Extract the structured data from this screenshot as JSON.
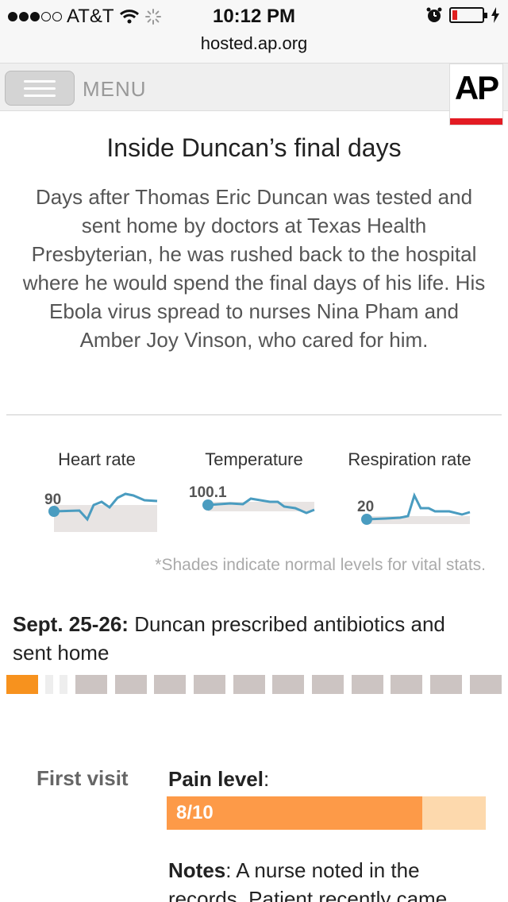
{
  "status_bar": {
    "carrier": "AT&T",
    "time": "10:12 PM",
    "signal_icon": "signal-dots-icon",
    "wifi_icon": "wifi-icon",
    "loading_icon": "activity-spinner-icon",
    "alarm_icon": "alarm-clock-icon",
    "battery_icon": "battery-icon",
    "charging_icon": "charging-bolt-icon"
  },
  "url": "hosted.ap.org",
  "header": {
    "menu_label": "MENU",
    "menu_icon": "hamburger-icon",
    "logo_text": "AP"
  },
  "article": {
    "title": "Inside Duncan’s final days",
    "intro": "Days after Thomas Eric Duncan was tested and sent home by doctors at Texas Health Presbyterian, he was rushed back to the hospital where he would spend the final days of his life. His Ebola virus spread to nurses Nina Pham and Amber Joy Vinson, who cared for him."
  },
  "vitals": [
    {
      "label": "Heart rate",
      "value": "90"
    },
    {
      "label": "Temperature",
      "value": "100.1"
    },
    {
      "label": "Respiration rate",
      "value": "20"
    }
  ],
  "footnote": "*Shades indicate normal levels for vital stats.",
  "timeline": {
    "date": "Sept. 25-26:",
    "description": "Duncan prescribed antibiotics and sent home"
  },
  "visit": {
    "label": "First visit",
    "pain_label": "Pain level",
    "pain_colon": ":",
    "pain_value": "8/10",
    "pain_fraction": 0.8,
    "notes_label": "Notes",
    "notes_colon": ":",
    "notes_text": " A nurse noted in the records. Patient recently came"
  },
  "colors": {
    "accent_orange": "#f7921e",
    "line_blue": "#4a9cc0",
    "ap_red": "#e31b23"
  }
}
